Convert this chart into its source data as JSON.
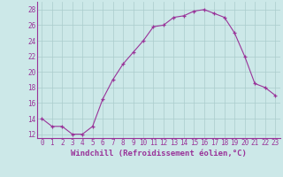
{
  "x": [
    0,
    1,
    2,
    3,
    4,
    5,
    6,
    7,
    8,
    9,
    10,
    11,
    12,
    13,
    14,
    15,
    16,
    17,
    18,
    19,
    20,
    21,
    22,
    23
  ],
  "y": [
    14,
    13,
    13,
    12,
    12,
    13,
    16.5,
    19,
    21,
    22.5,
    24,
    25.8,
    26,
    27,
    27.2,
    27.8,
    28,
    27.5,
    27,
    25,
    22,
    18.5,
    18,
    17
  ],
  "line_color": "#993399",
  "marker": "+",
  "bg_color": "#cce8e8",
  "grid_color": "#aacccc",
  "xlabel": "Windchill (Refroidissement éolien,°C)",
  "xlabel_color": "#993399",
  "tick_color": "#993399",
  "axis_color": "#993399",
  "ylim": [
    11.5,
    29
  ],
  "yticks": [
    12,
    14,
    16,
    18,
    20,
    22,
    24,
    26,
    28
  ],
  "xtick_labels": [
    "0",
    "1",
    "2",
    "3",
    "4",
    "5",
    "6",
    "7",
    "8",
    "9",
    "10",
    "11",
    "12",
    "13",
    "14",
    "15",
    "16",
    "17",
    "18",
    "19",
    "20",
    "21",
    "22",
    "23"
  ],
  "xlabel_fontsize": 6.5,
  "tick_fontsize": 5.5,
  "marker_size": 3,
  "line_width": 0.8
}
